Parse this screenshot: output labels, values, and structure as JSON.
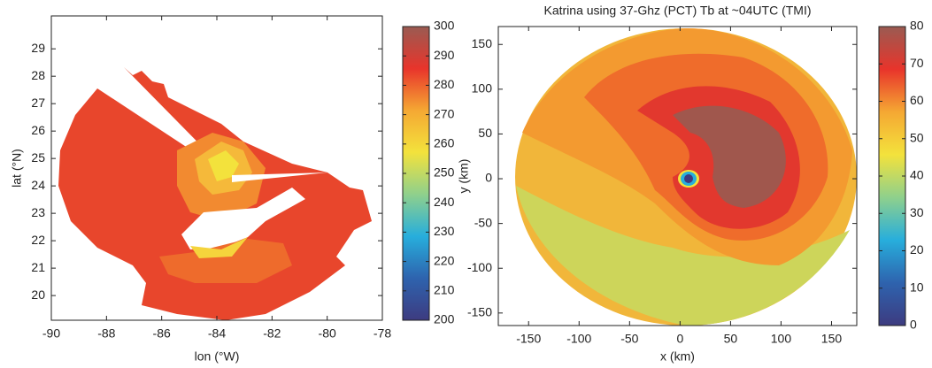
{
  "chart_data": [
    {
      "type": "contour",
      "xlabel": "lon (°W)",
      "ylabel": "lat (°N)",
      "xlim": [
        -90,
        -78
      ],
      "xticks": [
        -90,
        -88,
        -86,
        -84,
        -82,
        -80,
        -78
      ],
      "ylim": [
        19.1,
        30.2
      ],
      "yticks": [
        20,
        21,
        22,
        23,
        24,
        25,
        26,
        27,
        28,
        29
      ],
      "clim": [
        200,
        300
      ],
      "cticks": [
        200,
        210,
        220,
        230,
        240,
        250,
        260,
        270,
        280,
        290,
        300
      ],
      "colormap": [
        "#3d3b80",
        "#2e63ae",
        "#27aedc",
        "#8fd08c",
        "#f3e23c",
        "#f5a833",
        "#e8342b",
        "#9a5b52"
      ]
    },
    {
      "type": "contour",
      "title": "Katrina using 37-Ghz (PCT) Tb at ~04UTC (TMI)",
      "xlabel": "x (km)",
      "ylabel": "y (km)",
      "xlim": [
        -180,
        175
      ],
      "xticks": [
        -150,
        -100,
        -50,
        0,
        50,
        100,
        150
      ],
      "ylim": [
        -164,
        170
      ],
      "yticks": [
        -150,
        -100,
        -50,
        0,
        50,
        100,
        150
      ],
      "clim": [
        0,
        80
      ],
      "cticks": [
        0,
        10,
        20,
        30,
        40,
        50,
        60,
        70,
        80
      ],
      "colormap": [
        "#3d3b80",
        "#2e63ae",
        "#27aedc",
        "#8fd08c",
        "#f3e23c",
        "#f5a833",
        "#e8342b",
        "#9a5b52"
      ]
    }
  ]
}
